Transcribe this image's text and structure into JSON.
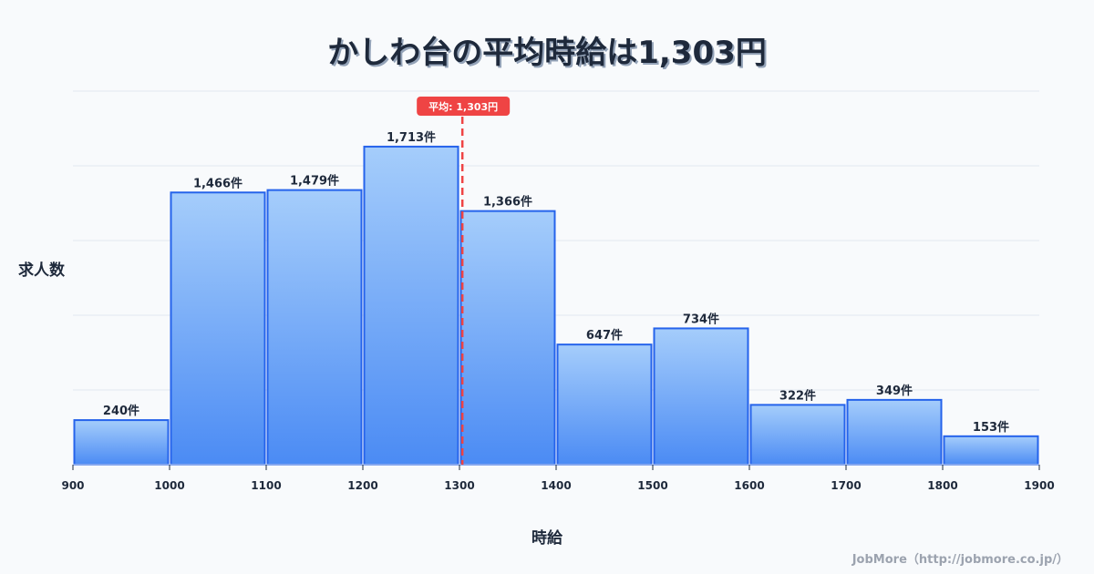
{
  "header": {
    "title": "かしわ台の平均時給は1,303円"
  },
  "axes": {
    "ylabel": "求人数",
    "xlabel": "時給"
  },
  "average": {
    "label": "平均: 1,303円",
    "value": 1303,
    "color": "#ef4444"
  },
  "credit": "JobMore（http://jobmore.co.jp/）",
  "colors": {
    "bar_top": "#a5cdfb",
    "bar_bottom": "#4b8bf4",
    "bar_border": "#2563eb",
    "grid": "#e2e8f0",
    "text": "#1e293b"
  },
  "chart_data": {
    "type": "bar",
    "title": "かしわ台の平均時給は1,303円",
    "xlabel": "時給",
    "ylabel": "求人数",
    "bin_edges": [
      900,
      1000,
      1100,
      1200,
      1300,
      1400,
      1500,
      1600,
      1700,
      1800,
      1900
    ],
    "categories": [
      "900-1000",
      "1000-1100",
      "1100-1200",
      "1200-1300",
      "1300-1400",
      "1400-1500",
      "1500-1600",
      "1600-1700",
      "1700-1800",
      "1800-1900"
    ],
    "values": [
      240,
      1466,
      1479,
      1713,
      1366,
      647,
      734,
      322,
      349,
      153
    ],
    "value_labels": [
      "240件",
      "1,466件",
      "1,479件",
      "1,713件",
      "1,366件",
      "647件",
      "734件",
      "322件",
      "349件",
      "153件"
    ],
    "x_tick_labels": [
      "900",
      "1000",
      "1100",
      "1200",
      "1300",
      "1400",
      "1500",
      "1600",
      "1700",
      "1800",
      "1900"
    ],
    "xlim": [
      900,
      1900
    ],
    "ylim": [
      0,
      2012
    ],
    "grid": true,
    "annotations": [
      {
        "type": "vline",
        "x": 1303,
        "label": "平均: 1,303円",
        "style": "dashed",
        "color": "#ef4444"
      }
    ]
  }
}
